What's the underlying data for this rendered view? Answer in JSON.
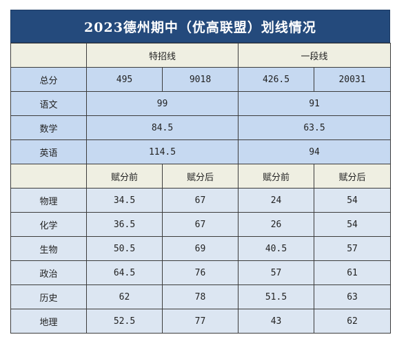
{
  "title": "2023德州期中（优高联盟）划线情况",
  "header": {
    "special": "特招线",
    "tier1": "一段线"
  },
  "total": {
    "label": "总分",
    "special_score": "495",
    "special_rank": "9018",
    "tier1_score": "426.5",
    "tier1_rank": "20031"
  },
  "unified": [
    {
      "subject": "语文",
      "special": "99",
      "tier1": "91"
    },
    {
      "subject": "数学",
      "special": "84.5",
      "tier1": "63.5"
    },
    {
      "subject": "英语",
      "special": "114.5",
      "tier1": "94"
    }
  ],
  "sub_header": {
    "before": "赋分前",
    "after": "赋分后"
  },
  "electives": [
    {
      "subject": "物理",
      "special_before": "34.5",
      "special_after": "67",
      "tier1_before": "24",
      "tier1_after": "54"
    },
    {
      "subject": "化学",
      "special_before": "36.5",
      "special_after": "67",
      "tier1_before": "26",
      "tier1_after": "54"
    },
    {
      "subject": "生物",
      "special_before": "50.5",
      "special_after": "69",
      "tier1_before": "40.5",
      "tier1_after": "57"
    },
    {
      "subject": "政治",
      "special_before": "64.5",
      "special_after": "76",
      "tier1_before": "57",
      "tier1_after": "61"
    },
    {
      "subject": "历史",
      "special_before": "62",
      "special_after": "78",
      "tier1_before": "51.5",
      "tier1_after": "63"
    },
    {
      "subject": "地理",
      "special_before": "52.5",
      "special_after": "77",
      "tier1_before": "43",
      "tier1_after": "62"
    }
  ]
}
